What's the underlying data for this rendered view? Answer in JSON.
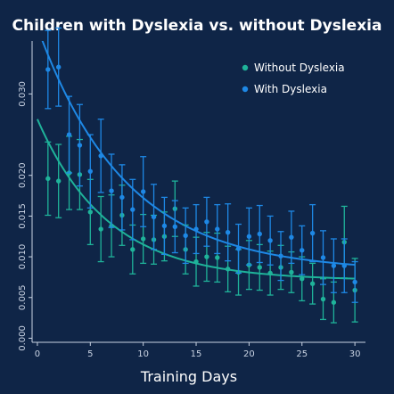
{
  "chart_data": {
    "type": "scatter",
    "title": "Children with Dyslexia vs. without Dyslexia",
    "xlabel": "Training Days",
    "ylabel": "",
    "xlim": [
      -0.5,
      31
    ],
    "ylim": [
      -0.0005,
      0.0365
    ],
    "x_ticks": [
      0,
      5,
      10,
      15,
      20,
      25,
      30
    ],
    "y_ticks": [
      0.0,
      0.005,
      0.01,
      0.015,
      0.02,
      0.03
    ],
    "y_tick_labels": [
      "0.000",
      "0.005",
      "0.010",
      "0.015",
      "0.020",
      "0.030"
    ],
    "grid": false,
    "legend_position": "top-right",
    "series": [
      {
        "name": "Without Dyslexia",
        "color": "#1fb39a",
        "x": [
          1,
          2,
          3,
          4,
          5,
          6,
          7,
          8,
          9,
          10,
          11,
          12,
          13,
          14,
          15,
          16,
          17,
          18,
          19,
          20,
          21,
          22,
          23,
          24,
          25,
          26,
          27,
          28,
          29,
          30
        ],
        "y": [
          0.0196,
          0.0193,
          0.0203,
          0.0201,
          0.0155,
          0.0134,
          0.0138,
          0.0151,
          0.0109,
          0.0122,
          0.0121,
          0.0125,
          0.0159,
          0.0109,
          0.0094,
          0.01,
          0.0099,
          0.0085,
          0.0081,
          0.009,
          0.0087,
          0.008,
          0.0087,
          0.0081,
          0.0073,
          0.0067,
          0.0048,
          0.0044,
          0.0118,
          0.0059
        ],
        "err": [
          0.0045,
          0.0045,
          0.0045,
          0.0043,
          0.004,
          0.004,
          0.0038,
          0.0037,
          0.003,
          0.003,
          0.003,
          0.003,
          0.0034,
          0.003,
          0.003,
          0.003,
          0.003,
          0.0028,
          0.0028,
          0.003,
          0.0028,
          0.0027,
          0.0027,
          0.0025,
          0.0027,
          0.0025,
          0.0025,
          0.0025,
          0.0044,
          0.0039
        ],
        "fit": {
          "a": 0.0198,
          "b": 0.15,
          "c": 0.0071
        }
      },
      {
        "name": "With Dyslexia",
        "color": "#1e88e5",
        "x": [
          1,
          2,
          3,
          4,
          5,
          6,
          7,
          8,
          9,
          10,
          11,
          12,
          13,
          14,
          15,
          16,
          17,
          18,
          19,
          20,
          21,
          22,
          23,
          24,
          25,
          26,
          27,
          28,
          29,
          30
        ],
        "y": [
          0.033,
          0.0333,
          0.025,
          0.0237,
          0.0205,
          0.0224,
          0.0181,
          0.0173,
          0.0158,
          0.018,
          0.0149,
          0.0138,
          0.0137,
          0.0126,
          0.0134,
          0.0143,
          0.0134,
          0.013,
          0.011,
          0.0125,
          0.0128,
          0.012,
          0.0101,
          0.0124,
          0.0108,
          0.0129,
          0.0099,
          0.0089,
          0.0089,
          0.0069
        ],
        "err": [
          0.0048,
          0.0048,
          0.0047,
          0.005,
          0.0045,
          0.0045,
          0.0045,
          0.004,
          0.0037,
          0.0043,
          0.004,
          0.0035,
          0.0032,
          0.0034,
          0.003,
          0.003,
          0.003,
          0.0035,
          0.003,
          0.0035,
          0.0035,
          0.003,
          0.003,
          0.0032,
          0.003,
          0.0035,
          0.0033,
          0.0033,
          0.0033,
          0.0025
        ],
        "fit": {
          "a": 0.03,
          "b": 0.12,
          "c": 0.0082
        }
      }
    ]
  }
}
